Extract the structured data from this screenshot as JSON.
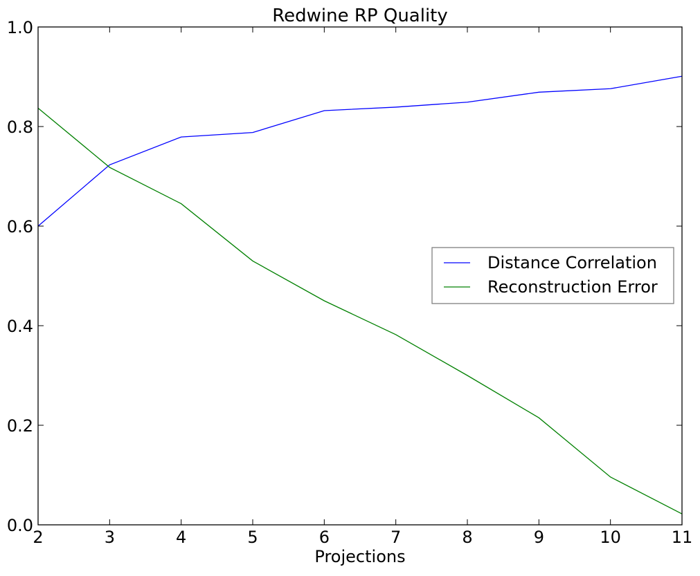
{
  "chart_data": {
    "type": "line",
    "title": "Redwine RP Quality",
    "xlabel": "Projections",
    "ylabel": "",
    "x": [
      2,
      3,
      4,
      5,
      6,
      7,
      8,
      9,
      10,
      11
    ],
    "xlim": [
      2,
      11
    ],
    "ylim": [
      0.0,
      1.0
    ],
    "xticks": [
      "2",
      "3",
      "4",
      "5",
      "6",
      "7",
      "8",
      "9",
      "10",
      "11"
    ],
    "yticks": [
      "0.0",
      "0.2",
      "0.4",
      "0.6",
      "0.8",
      "1.0"
    ],
    "grid": false,
    "legend_position": "center-right",
    "series": [
      {
        "name": "Distance Correlation",
        "color": "#0000ff",
        "values": [
          0.6,
          0.723,
          0.779,
          0.788,
          0.832,
          0.839,
          0.849,
          0.869,
          0.876,
          0.901
        ]
      },
      {
        "name": "Reconstruction Error",
        "color": "#008000",
        "values": [
          0.837,
          0.718,
          0.645,
          0.53,
          0.45,
          0.382,
          0.3,
          0.215,
          0.096,
          0.022
        ]
      }
    ]
  }
}
